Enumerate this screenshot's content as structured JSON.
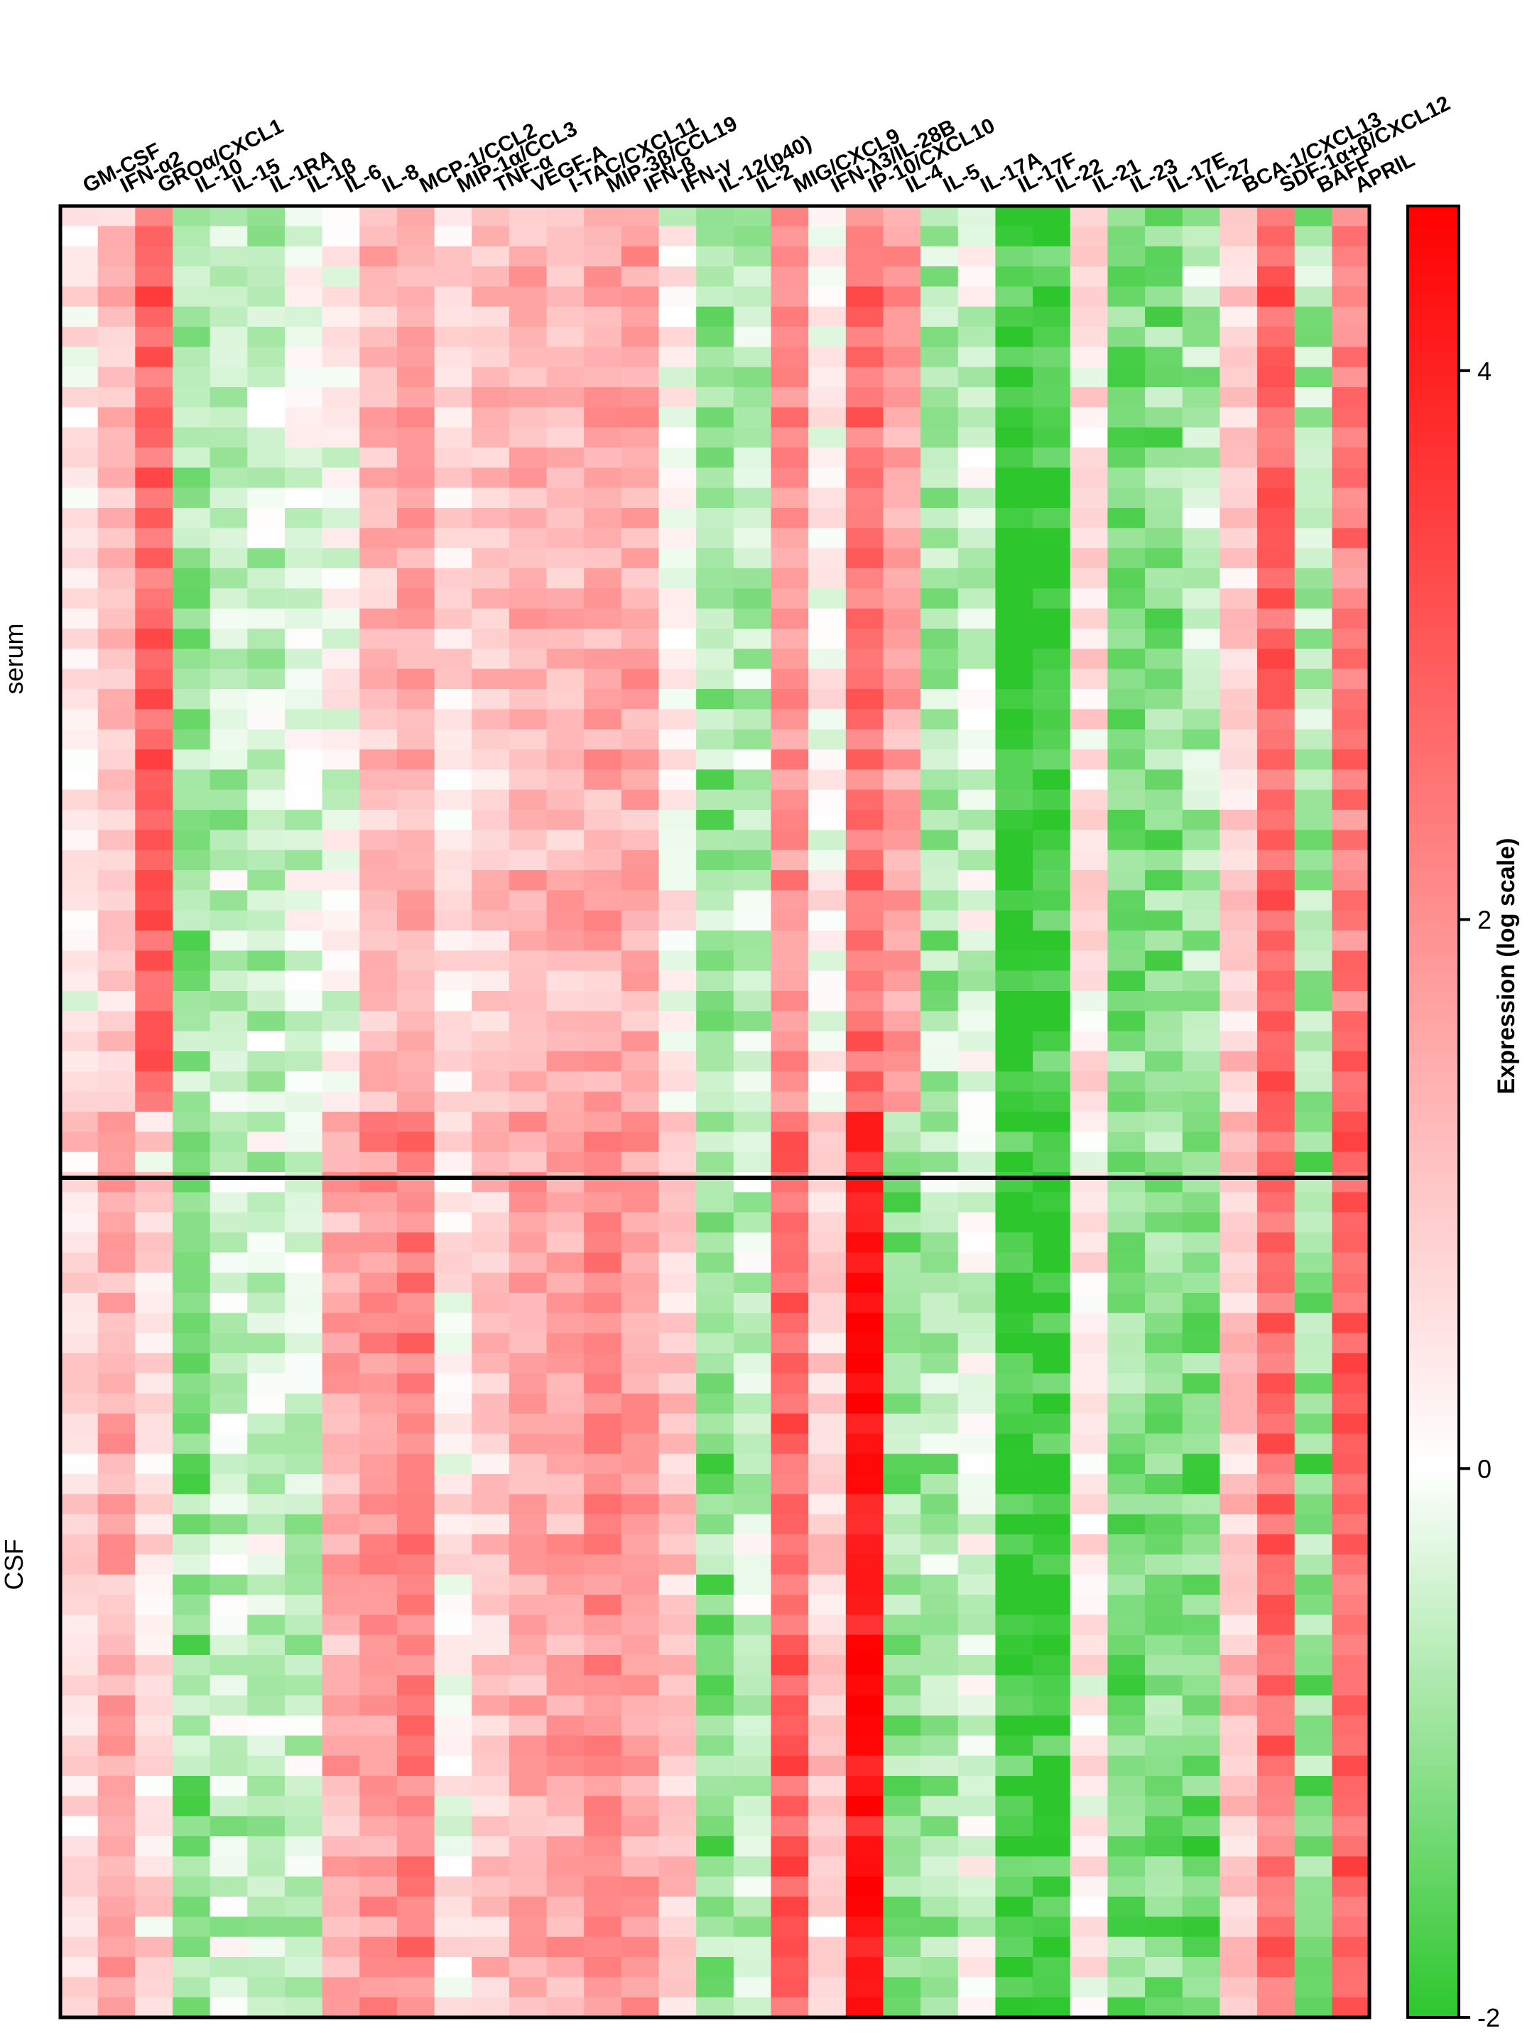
{
  "chart_data": {
    "type": "heatmap",
    "columns": [
      "GM-CSF",
      "IFN-α2",
      "GROα/CXCL1",
      "IL-10",
      "IL-15",
      "IL-1RA",
      "IL-1β",
      "IL-6",
      "IL-8",
      "MCP-1/CCL2",
      "MIP-1α/CCL3",
      "TNF-α",
      "VEGF-A",
      "I-TAC/CXCL11",
      "MIP-3β/CCL19",
      "IFN-β",
      "IFN-γ",
      "IL-12(p40)",
      "IL-2",
      "MIG/CXCL9",
      "IFN-λ3/IL-28B",
      "IP-10/CXCL10",
      "IL-4",
      "IL-5",
      "IL-17A",
      "IL-17F",
      "IL-22",
      "IL-21",
      "IL-23",
      "IL-17E",
      "IL-27",
      "BCA-1/CXCL13",
      "SDF-1α+β/CXCL12",
      "BAFF",
      "APRIL"
    ],
    "groups": [
      {
        "label": "serum",
        "rows": 45
      },
      {
        "label": "CSF",
        "rows": 45
      }
    ],
    "column_profiles": {
      "serum": [
        0.3,
        1.0,
        2.8,
        -1.0,
        -0.6,
        -0.6,
        -0.2,
        0.0,
        1.2,
        1.6,
        0.5,
        1.0,
        1.4,
        1.3,
        1.5,
        1.5,
        0.1,
        -1.0,
        -0.7,
        2.0,
        0.1,
        2.5,
        1.6,
        -0.9,
        -0.3,
        -2.0,
        -1.9,
        0.5,
        -1.2,
        -1.2,
        -0.7,
        0.8,
        2.8,
        -0.8,
        2.4
      ],
      "CSF": [
        0.8,
        1.5,
        0.6,
        -1.1,
        -0.5,
        -0.5,
        -0.6,
        1.4,
        1.9,
        2.3,
        0.3,
        1.0,
        1.6,
        1.6,
        2.1,
        1.7,
        0.9,
        -1.1,
        -0.5,
        2.8,
        0.7,
        4.2,
        -1.1,
        -0.8,
        -0.2,
        -2.0,
        -1.9,
        0.3,
        -1.2,
        -1.2,
        -1.3,
        1.0,
        2.6,
        -1.1,
        2.8
      ]
    },
    "noise_amplitude": 0.6,
    "seed": 7,
    "colorscale": {
      "min": -2,
      "mid": 0,
      "max": 4.6,
      "min_color": "#2dc72d",
      "mid_color": "#ffffff",
      "max_color": "#ff0000"
    },
    "colorbar": {
      "title": "Expression (log scale)",
      "ticks": [
        4,
        2,
        0,
        -2
      ],
      "tick_labels": [
        "4",
        "2",
        "0",
        "-2"
      ]
    }
  }
}
